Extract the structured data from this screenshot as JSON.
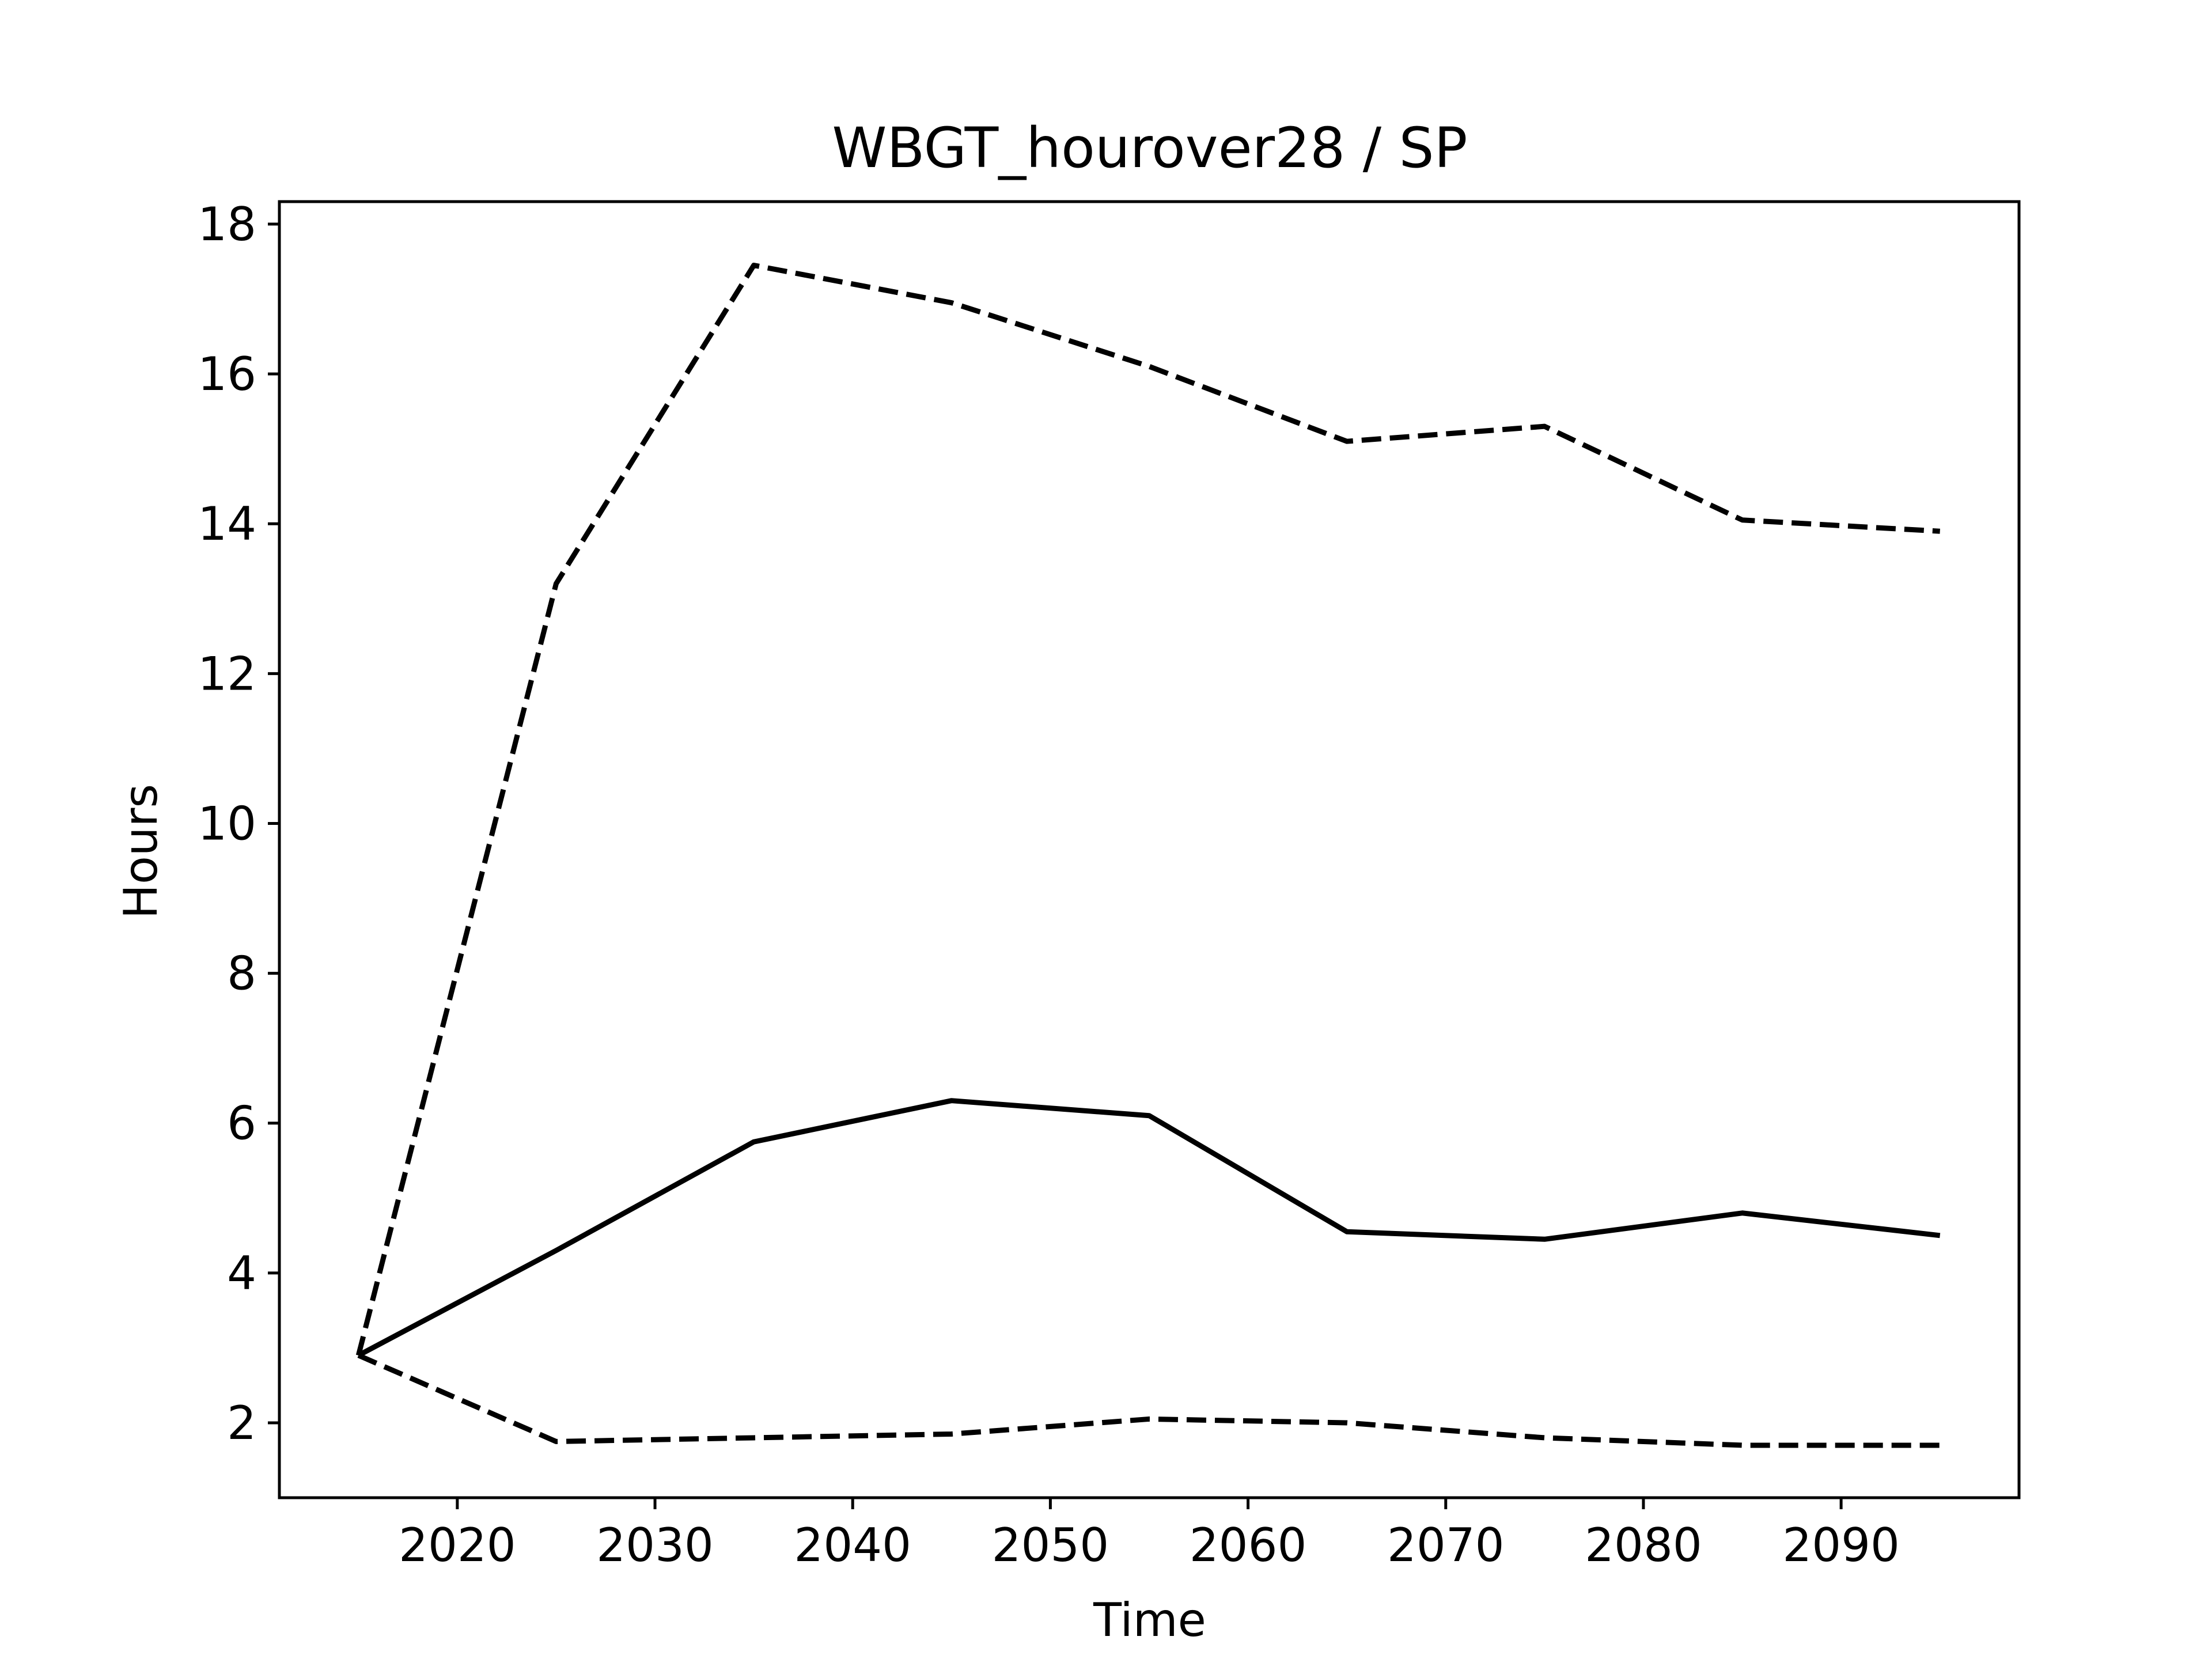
{
  "chart_data": {
    "type": "line",
    "title": "WBGT_hourover28 / SP",
    "xlabel": "Time",
    "ylabel": "Hours",
    "xlim": [
      2011,
      2099
    ],
    "ylim": [
      1.0,
      18.3
    ],
    "xticks": [
      2020,
      2030,
      2040,
      2050,
      2060,
      2070,
      2080,
      2090
    ],
    "yticks": [
      2,
      4,
      6,
      8,
      10,
      12,
      14,
      16,
      18
    ],
    "grid": false,
    "legend": "none",
    "x": [
      2015,
      2025,
      2035,
      2045,
      2055,
      2065,
      2075,
      2085,
      2095
    ],
    "series": [
      {
        "style": "solid",
        "color": "#000000",
        "values": [
          2.9,
          4.3,
          5.75,
          6.3,
          6.1,
          4.55,
          4.45,
          4.8,
          4.5
        ]
      },
      {
        "style": "dashed",
        "color": "#000000",
        "values": [
          2.9,
          13.2,
          17.45,
          16.95,
          16.1,
          15.1,
          15.3,
          14.05,
          13.9
        ]
      },
      {
        "style": "dashed",
        "color": "#000000",
        "values": [
          2.9,
          1.75,
          1.8,
          1.85,
          2.05,
          2.0,
          1.8,
          1.7,
          1.7
        ]
      }
    ]
  }
}
